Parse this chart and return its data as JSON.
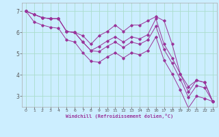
{
  "xlabel": "Windchill (Refroidissement éolien,°C)",
  "background_color": "#cceeff",
  "grid_color": "#aaddcc",
  "line_color": "#993399",
  "x_ticks": [
    0,
    1,
    2,
    3,
    4,
    5,
    6,
    7,
    8,
    9,
    10,
    11,
    12,
    13,
    14,
    15,
    16,
    17,
    18,
    19,
    20,
    21,
    22,
    23
  ],
  "y_ticks": [
    3,
    4,
    5,
    6,
    7
  ],
  "xlim": [
    -0.5,
    23.5
  ],
  "ylim": [
    2.5,
    7.4
  ],
  "series": [
    [
      7.0,
      6.85,
      6.7,
      6.65,
      6.65,
      6.05,
      6.0,
      5.85,
      5.45,
      5.85,
      6.05,
      6.35,
      6.05,
      6.35,
      6.35,
      6.55,
      6.75,
      6.55,
      5.45,
      4.05,
      3.45,
      3.75,
      3.65,
      2.75
    ],
    [
      7.0,
      6.85,
      6.7,
      6.65,
      6.65,
      6.05,
      6.0,
      5.55,
      5.15,
      5.35,
      5.6,
      5.8,
      5.55,
      5.8,
      5.7,
      5.9,
      6.65,
      5.45,
      4.8,
      4.05,
      3.2,
      3.75,
      3.65,
      2.75
    ],
    [
      7.0,
      6.85,
      6.7,
      6.65,
      6.65,
      6.05,
      6.0,
      5.55,
      5.15,
      5.1,
      5.35,
      5.55,
      5.3,
      5.55,
      5.45,
      5.65,
      6.3,
      5.2,
      4.55,
      3.8,
      2.95,
      3.5,
      3.4,
      2.75
    ],
    [
      7.0,
      6.5,
      6.35,
      6.25,
      6.2,
      5.65,
      5.55,
      5.05,
      4.65,
      4.6,
      4.85,
      5.05,
      4.8,
      5.05,
      4.95,
      5.15,
      5.8,
      4.7,
      4.05,
      3.3,
      2.45,
      3.0,
      2.9,
      2.75
    ]
  ]
}
